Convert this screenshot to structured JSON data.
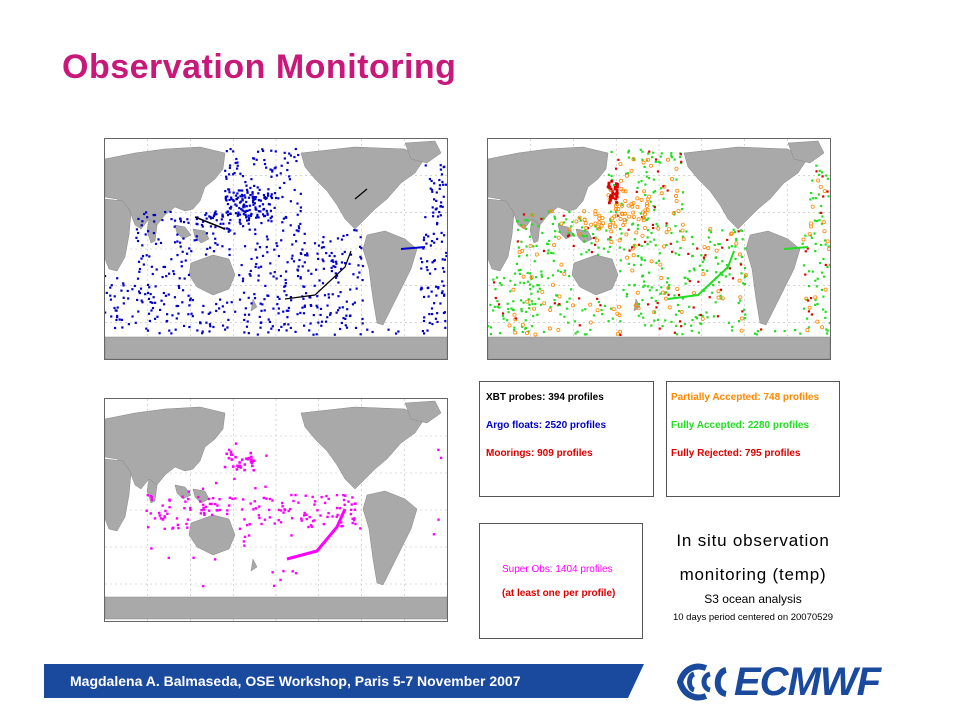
{
  "slide": {
    "title": "Observation Monitoring",
    "footer": "Magdalena A. Balmaseda, OSE Workshop, Paris 5-7 November 2007",
    "logo_text": "ECMWF"
  },
  "colors": {
    "title": "#c8197a",
    "footer_bar": "#1a4a9e",
    "land": "#a9a9a9",
    "xbt": "#000000",
    "argo": "#0000cc",
    "moorings": "#dd0000",
    "partially_accepted": "#ff8800",
    "fully_accepted": "#22dd22",
    "fully_rejected": "#dd0000",
    "super_obs": "#ff00ff"
  },
  "maps": [
    {
      "id": "obs-type",
      "description_ref": "legend_types"
    },
    {
      "id": "qc-status",
      "description_ref": "legend_qc"
    },
    {
      "id": "super-obs",
      "description_ref": "legend_super"
    }
  ],
  "legend_types": {
    "xbt": "XBT probes: 394 profiles",
    "argo": "Argo floats: 2520 profiles",
    "moorings": "Moorings: 909 profiles"
  },
  "legend_qc": {
    "partial": "Partially Accepted: 748 profiles",
    "full": "Fully Accepted: 2280 profiles",
    "rejected": "Fully Rejected: 795 profiles"
  },
  "legend_super": {
    "line1": "Super Obs: 1404 profiles",
    "line2": "(at least one per profile)"
  },
  "analysis": {
    "line1": "In situ observation",
    "line2": "monitoring (temp)",
    "line3": "S3 ocean analysis",
    "line4": "10 days period centered on 20070529"
  }
}
